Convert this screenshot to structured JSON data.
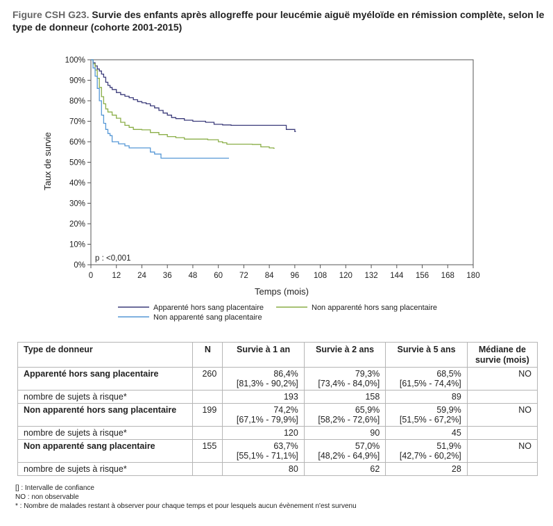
{
  "title": {
    "figure_label": "Figure CSH G23.",
    "text": " Survie des enfants après allogreffe pour leucémie aiguë myéloïde en rémission complète, selon le type de donneur (cohorte 2001-2015)"
  },
  "chart_data": {
    "type": "line",
    "xlabel": "Temps (mois)",
    "ylabel": "Taux de survie",
    "xlim": [
      0,
      180
    ],
    "ylim": [
      0,
      100
    ],
    "x_ticks": [
      0,
      12,
      24,
      36,
      48,
      60,
      72,
      84,
      96,
      108,
      120,
      132,
      144,
      156,
      168,
      180
    ],
    "y_ticks": [
      0,
      10,
      20,
      30,
      40,
      50,
      60,
      70,
      80,
      90,
      100
    ],
    "y_tick_labels": [
      "0%",
      "10%",
      "20%",
      "30%",
      "40%",
      "50%",
      "60%",
      "70%",
      "80%",
      "90%",
      "100%"
    ],
    "annotation": "p : <0,001",
    "legend_position": "bottom",
    "grid": false,
    "series": [
      {
        "name": "Apparenté hors sang placentaire",
        "color": "#3b3b7a",
        "points": [
          [
            0,
            100
          ],
          [
            1,
            98.5
          ],
          [
            2,
            97
          ],
          [
            3,
            95.5
          ],
          [
            4,
            94.5
          ],
          [
            5,
            93
          ],
          [
            6,
            91.5
          ],
          [
            7,
            89
          ],
          [
            8,
            87.5
          ],
          [
            9,
            86.5
          ],
          [
            10,
            85.5
          ],
          [
            12,
            84
          ],
          [
            14,
            83
          ],
          [
            16,
            82.2
          ],
          [
            18,
            81.5
          ],
          [
            20,
            80.5
          ],
          [
            22,
            79.6
          ],
          [
            24,
            79
          ],
          [
            26,
            78.5
          ],
          [
            28,
            77.5
          ],
          [
            30,
            76.5
          ],
          [
            32,
            75.3
          ],
          [
            34,
            74
          ],
          [
            36,
            73
          ],
          [
            38,
            71.8
          ],
          [
            40,
            71.3
          ],
          [
            44,
            70.5
          ],
          [
            48,
            70
          ],
          [
            54,
            69.5
          ],
          [
            58,
            68.5
          ],
          [
            62,
            68.2
          ],
          [
            66,
            68
          ],
          [
            72,
            68
          ],
          [
            80,
            68
          ],
          [
            90,
            68
          ],
          [
            92,
            66
          ],
          [
            96,
            65
          ],
          [
            96.5,
            65
          ]
        ]
      },
      {
        "name": "Non apparenté hors sang placentaire",
        "color": "#8aae47",
        "points": [
          [
            0,
            100
          ],
          [
            1,
            98
          ],
          [
            2,
            95
          ],
          [
            3,
            91
          ],
          [
            4,
            86.5
          ],
          [
            5,
            82
          ],
          [
            6,
            78.5
          ],
          [
            7,
            76
          ],
          [
            8,
            74.5
          ],
          [
            10,
            73
          ],
          [
            12,
            71.5
          ],
          [
            14,
            69.5
          ],
          [
            16,
            68
          ],
          [
            18,
            67
          ],
          [
            20,
            66
          ],
          [
            24,
            65.8
          ],
          [
            28,
            64.5
          ],
          [
            32,
            63.5
          ],
          [
            36,
            62.5
          ],
          [
            40,
            62
          ],
          [
            44,
            61.3
          ],
          [
            50,
            61.3
          ],
          [
            55,
            61
          ],
          [
            60,
            60
          ],
          [
            62,
            59.5
          ],
          [
            64,
            58.8
          ],
          [
            70,
            58.8
          ],
          [
            76,
            58.7
          ],
          [
            80,
            57.5
          ],
          [
            84,
            57
          ],
          [
            86,
            56.8
          ],
          [
            86.5,
            56.8
          ]
        ]
      },
      {
        "name": "Non apparenté sang placentaire",
        "color": "#5597d6",
        "points": [
          [
            0,
            100
          ],
          [
            1,
            96
          ],
          [
            2,
            92
          ],
          [
            3,
            86
          ],
          [
            4,
            80
          ],
          [
            5,
            73
          ],
          [
            6,
            69
          ],
          [
            7,
            66
          ],
          [
            8,
            64
          ],
          [
            9,
            63
          ],
          [
            10,
            60
          ],
          [
            13,
            59
          ],
          [
            16,
            58
          ],
          [
            18,
            57
          ],
          [
            22,
            57
          ],
          [
            26,
            57
          ],
          [
            28,
            55
          ],
          [
            30,
            54
          ],
          [
            33,
            52
          ],
          [
            36,
            52
          ],
          [
            45,
            52
          ],
          [
            55,
            52
          ],
          [
            60,
            52
          ],
          [
            65,
            52
          ]
        ]
      }
    ]
  },
  "table": {
    "headers": [
      "Type de donneur",
      "N",
      "Survie à 1 an",
      "Survie à 2 ans",
      "Survie à 5 ans",
      "Médiane de survie (mois)"
    ],
    "groups": [
      {
        "label": "Apparenté hors sang placentaire",
        "n": "260",
        "s1": "86,4%",
        "ci1": "[81,3% - 90,2%]",
        "s2": "79,3%",
        "ci2": "[73,4% - 84,0%]",
        "s5": "68,5%",
        "ci5": "[61,5% - 74,4%]",
        "median": "NO",
        "risk_label": "nombre de sujets à risque*",
        "risk": [
          "193",
          "158",
          "89"
        ]
      },
      {
        "label": "Non apparenté hors sang placentaire",
        "n": "199",
        "s1": "74,2%",
        "ci1": "[67,1% - 79,9%]",
        "s2": "65,9%",
        "ci2": "[58,2% - 72,6%]",
        "s5": "59,9%",
        "ci5": "[51,5% - 67,2%]",
        "median": "NO",
        "risk_label": "nombre de sujets à risque*",
        "risk": [
          "120",
          "90",
          "45"
        ]
      },
      {
        "label": "Non apparenté sang placentaire",
        "n": "155",
        "s1": "63,7%",
        "ci1": "[55,1% - 71,1%]",
        "s2": "57,0%",
        "ci2": "[48,2% - 64,9%]",
        "s5": "51,9%",
        "ci5": "[42,7% - 60,2%]",
        "median": "NO",
        "risk_label": "nombre de sujets à risque*",
        "risk": [
          "80",
          "62",
          "28"
        ]
      }
    ]
  },
  "notes": [
    "[] : Intervalle de confiance",
    "NO : non observable",
    "* : Nombre de malades restant à observer pour chaque temps et pour lesquels aucun évènement n'est survenu"
  ]
}
